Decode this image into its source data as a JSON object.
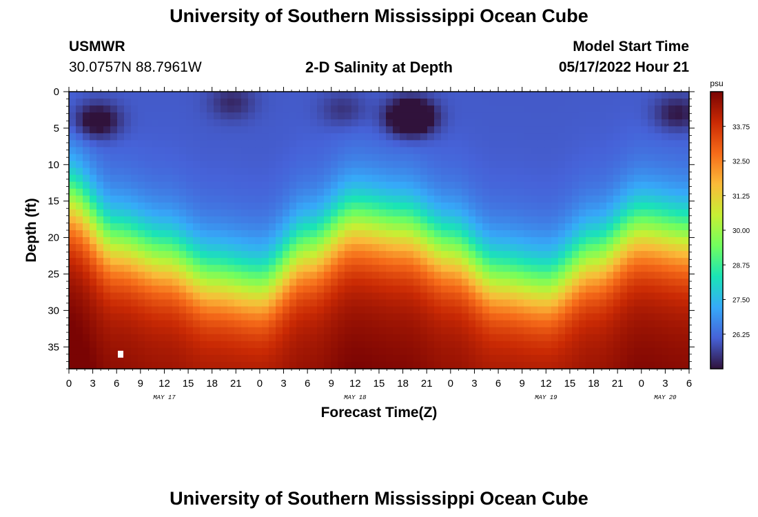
{
  "title": "University of Southern Mississippi Ocean Cube",
  "station": {
    "name": "USMWR",
    "coords": "30.0757N  88.7961W"
  },
  "plot_title": "2-D Salinity at Depth",
  "model_start": {
    "label": "Model Start Time",
    "value": "05/17/2022 Hour 21"
  },
  "colors": {
    "colormap": [
      "#30123b",
      "#4662d8",
      "#36aaf9",
      "#1ae4b6",
      "#72fe5e",
      "#c7ef34",
      "#faba39",
      "#f66b19",
      "#ca2a04",
      "#7a0403"
    ]
  },
  "chart_data": {
    "type": "heatmap",
    "title": "2-D Salinity at Depth",
    "xlabel": "Forecast Time(Z)",
    "ylabel": "Depth (ft)",
    "xlim": [
      0,
      78
    ],
    "ylim": [
      38,
      0
    ],
    "x_tick_labels": [
      "0",
      "3",
      "6",
      "9",
      "12",
      "15",
      "18",
      "21",
      "0",
      "3",
      "6",
      "9",
      "12",
      "15",
      "18",
      "21",
      "0",
      "3",
      "6",
      "9",
      "12",
      "15",
      "18",
      "21",
      "0",
      "3",
      "6"
    ],
    "y_ticks": [
      0,
      5,
      10,
      15,
      20,
      25,
      30,
      35
    ],
    "day_labels": [
      {
        "label": "MAY 17",
        "hour": 12
      },
      {
        "label": "MAY 18",
        "hour": 36
      },
      {
        "label": "MAY 19",
        "hour": 60
      },
      {
        "label": "MAY 20",
        "hour": 75
      }
    ],
    "colorbar": {
      "unit": "psu",
      "min": 25.0,
      "max": 35.0,
      "tick_labels": [
        "33.75",
        "32.50",
        "31.25",
        "30.00",
        "28.75",
        "27.50",
        "26.25"
      ],
      "tick_values": [
        33.75,
        32.5,
        31.25,
        30.0,
        28.75,
        27.5,
        26.25
      ]
    },
    "field": {
      "surface_salinity": 26.0,
      "bottom_salinity": 34.5,
      "halocline_hours": [
        0,
        6,
        12,
        18,
        24,
        30,
        36,
        42,
        48,
        54,
        60,
        66,
        72,
        78
      ],
      "halocline_depth_ft": [
        15,
        21,
        23,
        26,
        27,
        22,
        18,
        19,
        22,
        26,
        27,
        23,
        19,
        20
      ],
      "fresh_patches": [
        {
          "hour": 3.5,
          "depth_ft": 4,
          "salinity": 24.5
        },
        {
          "hour": 43,
          "depth_ft": 3.5,
          "salinity": 23.2
        },
        {
          "hour": 76.5,
          "depth_ft": 3,
          "salinity": 25.0
        },
        {
          "hour": 20.5,
          "depth_ft": 1.5,
          "salinity": 25.3
        },
        {
          "hour": 34.5,
          "depth_ft": 2.5,
          "salinity": 25.4
        }
      ]
    },
    "marker": {
      "hour": 6.5,
      "depth_ft": 36
    }
  }
}
